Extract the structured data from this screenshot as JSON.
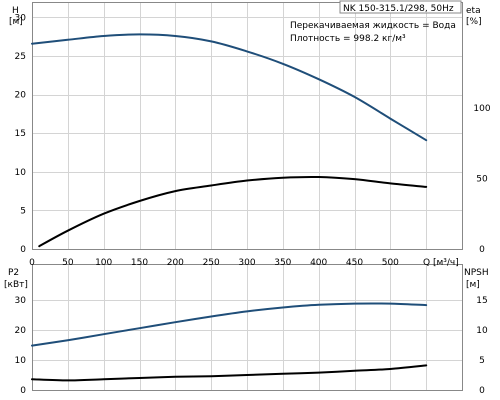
{
  "chart_data": [
    {
      "type": "line",
      "panel": "upper",
      "title": "NK 150-315.1/298, 50Hz",
      "annotations": [
        "Перекачиваемая жидкость = Вода",
        "Плотность = 998.2 кг/м³"
      ],
      "xlabel": "Q [м³/ч]",
      "xlim": [
        0,
        600
      ],
      "x_ticks": [
        "0",
        "50",
        "100",
        "150",
        "200",
        "250",
        "300",
        "350",
        "400",
        "450",
        "500"
      ],
      "y_left": {
        "label": "H",
        "unit": "[м]",
        "lim": [
          0,
          32
        ],
        "ticks": [
          "0",
          "5",
          "10",
          "15",
          "20",
          "25",
          "30"
        ]
      },
      "y_right": {
        "label": "eta",
        "unit": "[%]",
        "lim": [
          0,
          175
        ],
        "ticks": [
          "0",
          "50",
          "100"
        ]
      },
      "series": [
        {
          "axis": "left",
          "color": "#1f4e79",
          "points": [
            [
              0,
              26.6
            ],
            [
              50,
              27.1
            ],
            [
              100,
              27.6
            ],
            [
              150,
              27.8
            ],
            [
              200,
              27.6
            ],
            [
              250,
              26.9
            ],
            [
              300,
              25.6
            ],
            [
              350,
              24.0
            ],
            [
              400,
              22.0
            ],
            [
              450,
              19.7
            ],
            [
              500,
              16.9
            ],
            [
              550,
              14.1
            ]
          ]
        },
        {
          "axis": "right",
          "color": "#000000",
          "points": [
            [
              10,
              2
            ],
            [
              50,
              13
            ],
            [
              100,
              25
            ],
            [
              150,
              34
            ],
            [
              200,
              41
            ],
            [
              250,
              45
            ],
            [
              300,
              48.5
            ],
            [
              350,
              50.5
            ],
            [
              400,
              51
            ],
            [
              450,
              49.5
            ],
            [
              500,
              46.5
            ],
            [
              550,
              44
            ]
          ]
        }
      ]
    },
    {
      "type": "line",
      "panel": "lower",
      "xlim": [
        0,
        600
      ],
      "x_ticks": [
        "0",
        "50",
        "100",
        "150",
        "200",
        "250",
        "300",
        "350",
        "400",
        "450",
        "500"
      ],
      "y_left": {
        "label": "P2",
        "unit": "[кВт]",
        "lim": [
          0,
          42
        ],
        "ticks": [
          "0",
          "10",
          "20",
          "30"
        ]
      },
      "y_right": {
        "label": "NPSH",
        "unit": "[м]",
        "lim": [
          0,
          21
        ],
        "ticks": [
          "0",
          "5",
          "10",
          "15"
        ]
      },
      "series": [
        {
          "axis": "left",
          "color": "#1f4e79",
          "points": [
            [
              0,
              14.8
            ],
            [
              50,
              16.6
            ],
            [
              100,
              18.6
            ],
            [
              150,
              20.6
            ],
            [
              200,
              22.6
            ],
            [
              250,
              24.5
            ],
            [
              300,
              26.2
            ],
            [
              350,
              27.5
            ],
            [
              400,
              28.4
            ],
            [
              450,
              28.8
            ],
            [
              500,
              28.8
            ],
            [
              550,
              28.3
            ]
          ]
        },
        {
          "axis": "right",
          "color": "#000000",
          "points": [
            [
              0,
              1.8
            ],
            [
              50,
              1.6
            ],
            [
              100,
              1.8
            ],
            [
              150,
              2.0
            ],
            [
              200,
              2.2
            ],
            [
              250,
              2.3
            ],
            [
              300,
              2.5
            ],
            [
              350,
              2.7
            ],
            [
              400,
              2.9
            ],
            [
              450,
              3.2
            ],
            [
              500,
              3.5
            ],
            [
              550,
              4.1
            ]
          ]
        }
      ]
    }
  ]
}
